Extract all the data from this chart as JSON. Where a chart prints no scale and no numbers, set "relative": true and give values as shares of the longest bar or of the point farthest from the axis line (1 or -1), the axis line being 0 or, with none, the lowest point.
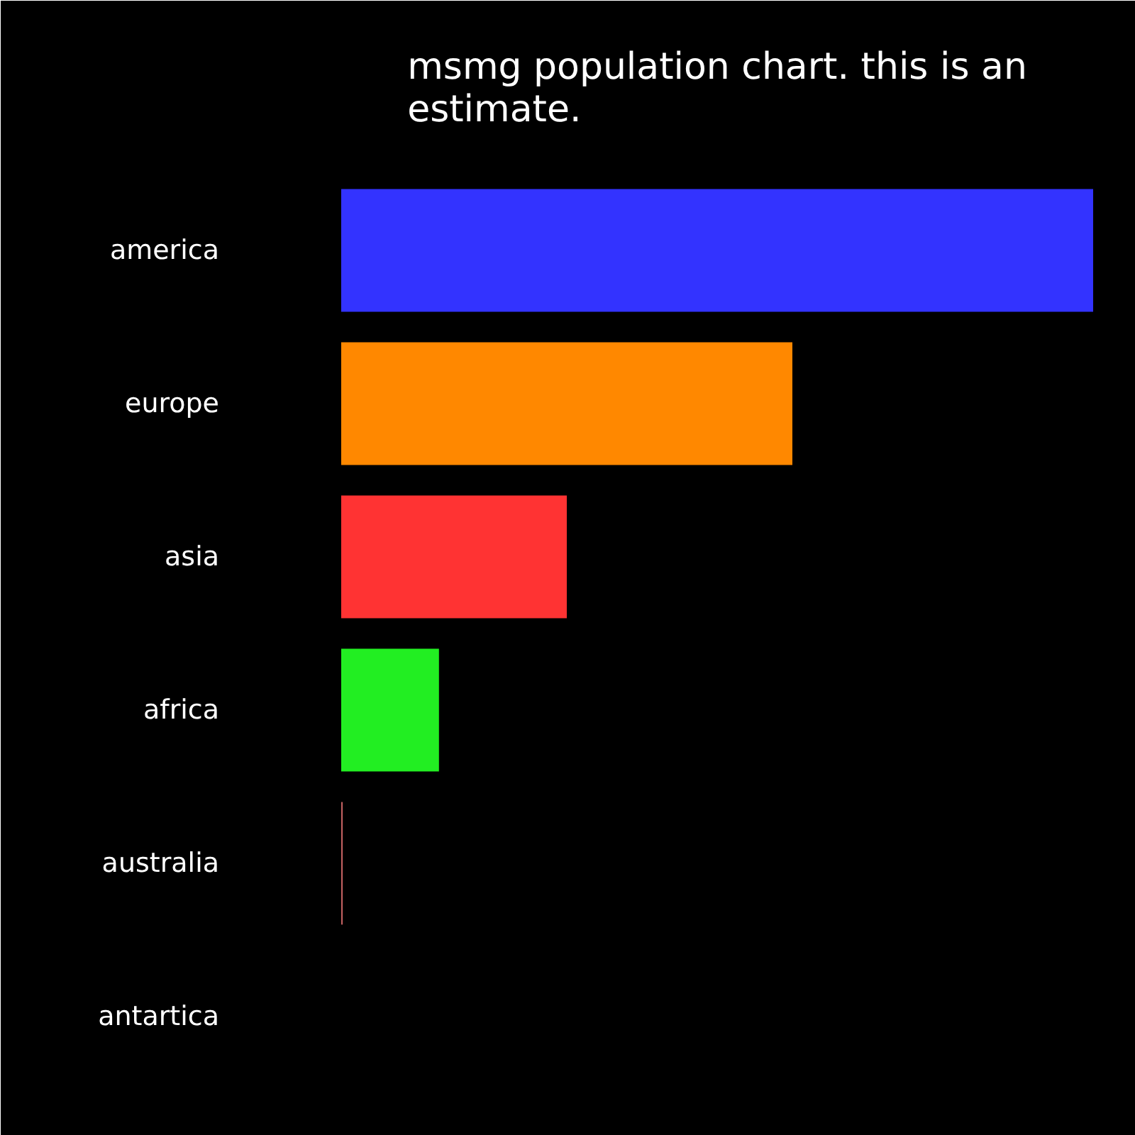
{
  "chart_data": {
    "type": "bar",
    "title": "msmg population chart. this is an estimate.",
    "orientation": "horizontal",
    "relative": true,
    "categories": [
      "america",
      "europe",
      "asia",
      "africa",
      "australia",
      "antartica"
    ],
    "values": [
      1,
      0.6,
      0.3,
      0.13,
      0.002,
      0
    ],
    "colors": [
      "#3333ff",
      "#ff8800",
      "#ff3333",
      "#22ee22",
      "#c06060",
      "#000000"
    ]
  }
}
